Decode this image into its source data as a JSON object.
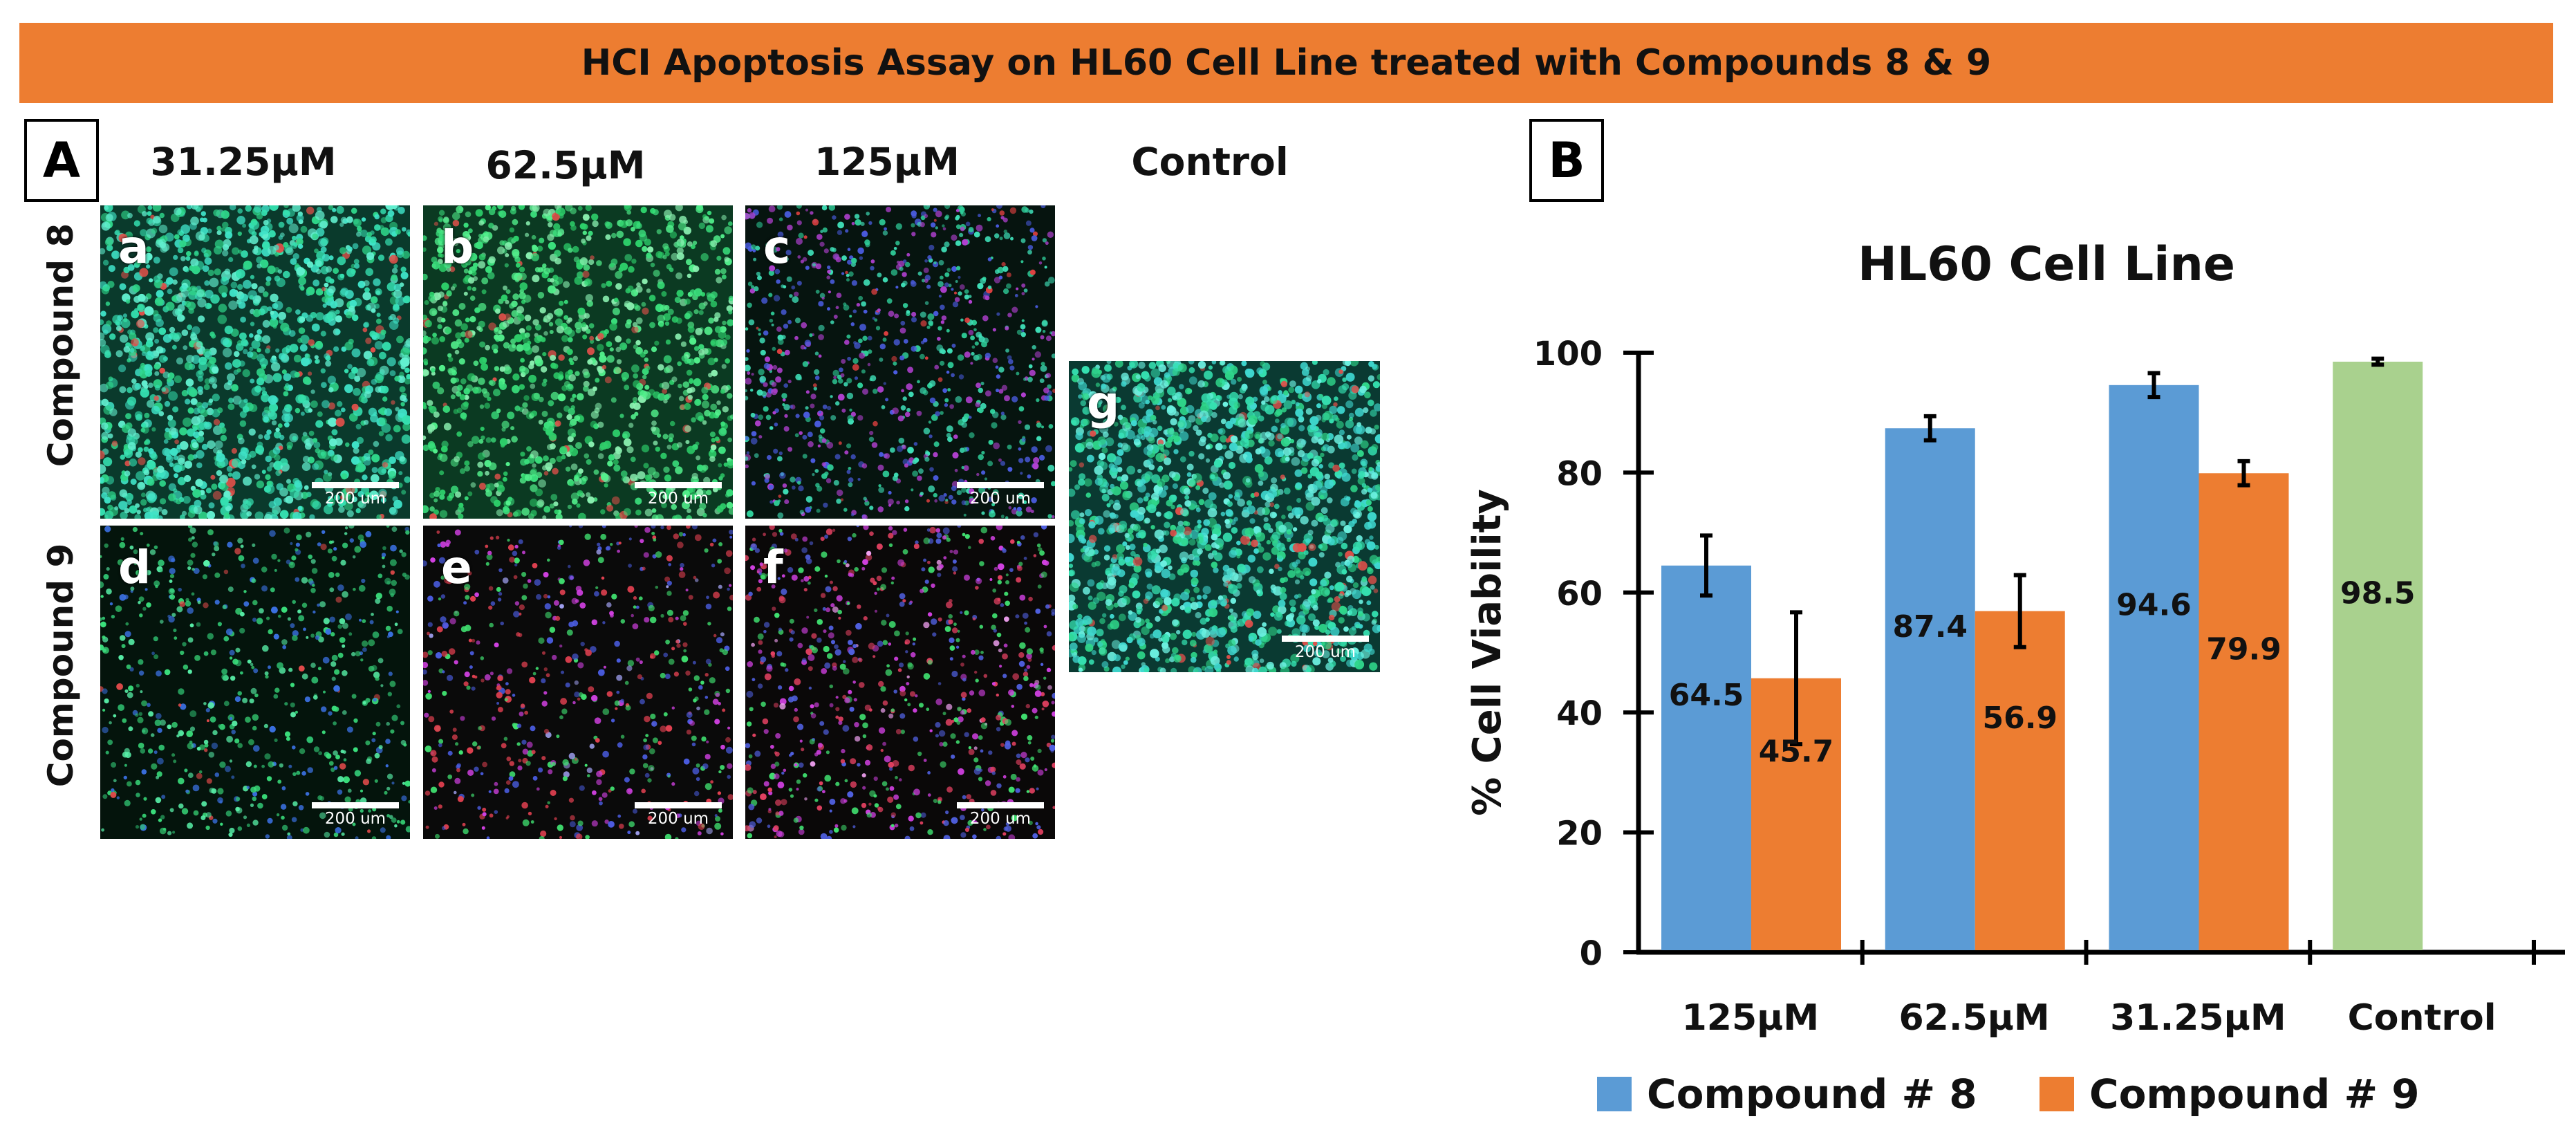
{
  "banner": {
    "title": "HCI Apoptosis Assay on HL60 Cell Line treated with  Compounds 8 & 9"
  },
  "panel_a": {
    "letter": "A",
    "columns": [
      "31.25μM",
      "62.5μM",
      "125μM",
      "Control"
    ],
    "rows": [
      "Compound 8",
      "Compound 9"
    ],
    "images": [
      {
        "letter": "a",
        "scale": "200 um"
      },
      {
        "letter": "b",
        "scale": "200 um"
      },
      {
        "letter": "c",
        "scale": "200 um"
      },
      {
        "letter": "d",
        "scale": "200 um"
      },
      {
        "letter": "e",
        "scale": "200 um"
      },
      {
        "letter": "f",
        "scale": "200 um"
      },
      {
        "letter": "g",
        "scale": "200 um"
      }
    ]
  },
  "panel_b": {
    "letter": "B"
  },
  "chart_data": {
    "type": "bar",
    "title": "HL60 Cell Line",
    "xlabel": "",
    "ylabel": "% Cell Viability",
    "ylim": [
      0,
      100
    ],
    "yticks": [
      0,
      20,
      40,
      60,
      80,
      100
    ],
    "grid": false,
    "legend": "bottom",
    "categories": [
      "125μM",
      "62.5μM",
      "31.25μM",
      "Control"
    ],
    "series": [
      {
        "name": "Compound # 8",
        "color": "#5B9BD5",
        "values": [
          64.5,
          87.4,
          94.6,
          null
        ],
        "errors": [
          5,
          2,
          2,
          null
        ]
      },
      {
        "name": "Compound # 9",
        "color": "#ED7D31",
        "values": [
          45.7,
          56.9,
          79.9,
          null
        ],
        "errors": [
          11,
          6,
          2,
          null
        ]
      },
      {
        "name": "",
        "color": "#A9D18E",
        "values": [
          null,
          null,
          null,
          98.5
        ],
        "errors": [
          null,
          null,
          null,
          0.5
        ]
      }
    ],
    "data_labels": [
      "64.5",
      "45.7",
      "87.4",
      "56.9",
      "94.6",
      "79.9",
      "98.5"
    ]
  }
}
